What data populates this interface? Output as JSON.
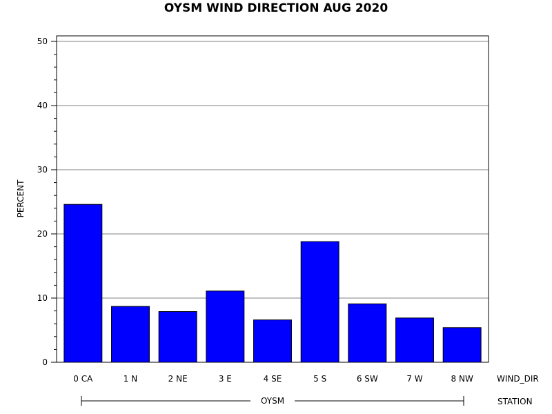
{
  "chart_data": {
    "type": "bar",
    "title": "OYSM WIND DIRECTION AUG 2020",
    "ylabel": "PERCENT",
    "xlabel": "WIND_DIR",
    "group_axis_label": "STATION",
    "group_label": "OYSM",
    "categories": [
      "0 CA",
      "1 N",
      "2 NE",
      "3 E",
      "4 SE",
      "5 S",
      "6 SW",
      "7 W",
      "8 NW"
    ],
    "values": [
      24.6,
      8.7,
      7.9,
      11.1,
      6.6,
      18.8,
      9.1,
      6.9,
      5.4
    ],
    "ylim": [
      0,
      50
    ],
    "yticks": [
      0,
      10,
      20,
      30,
      40,
      50
    ],
    "grid": true,
    "bar_color": "#0000ff",
    "legend": "none"
  }
}
